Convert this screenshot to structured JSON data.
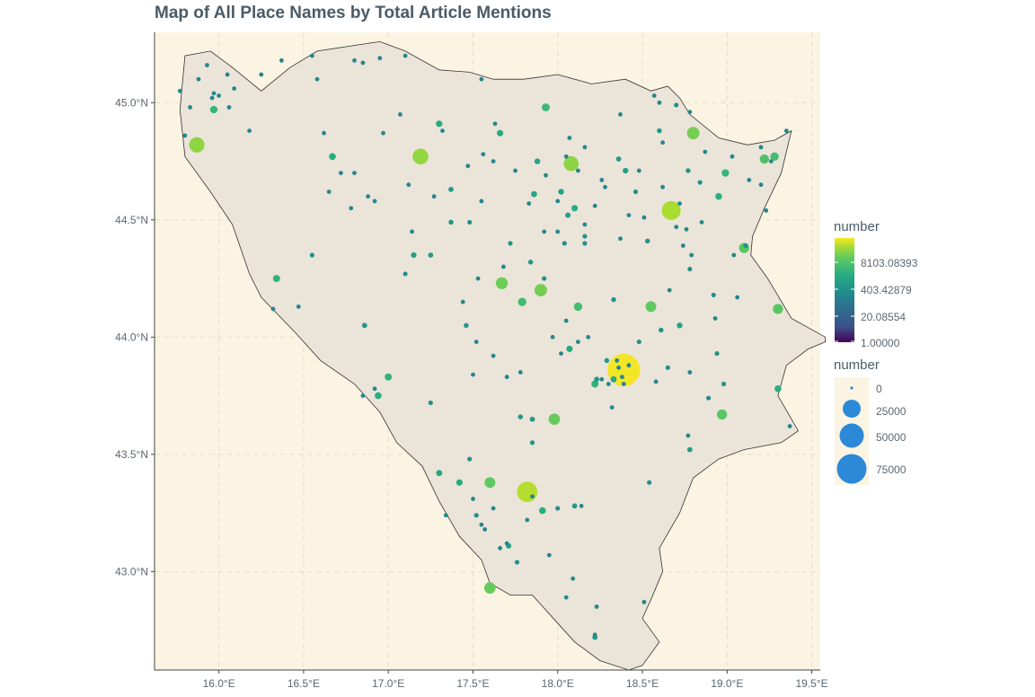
{
  "title": "Map of All Place Names by Total Article Mentions",
  "colors": {
    "panel_bg": "#fbf4e2",
    "country_fill": "#ebe4d8",
    "grid": "#e8dec7",
    "axis": "#444444",
    "size_legend_point": "#2c89d8"
  },
  "axes": {
    "x_ticks": [
      {
        "value": 16.0,
        "label": "16.0°E"
      },
      {
        "value": 16.5,
        "label": "16.5°E"
      },
      {
        "value": 17.0,
        "label": "17.0°E"
      },
      {
        "value": 17.5,
        "label": "17.5°E"
      },
      {
        "value": 18.0,
        "label": "18.0°E"
      },
      {
        "value": 18.5,
        "label": "18.5°E"
      },
      {
        "value": 19.0,
        "label": "19.0°E"
      },
      {
        "value": 19.5,
        "label": "19.5°E"
      }
    ],
    "y_ticks": [
      {
        "value": 43.0,
        "label": "43.0°N"
      },
      {
        "value": 43.5,
        "label": "43.5°N"
      },
      {
        "value": 44.0,
        "label": "44.0°N"
      },
      {
        "value": 44.5,
        "label": "44.5°N"
      },
      {
        "value": 45.0,
        "label": "45.0°N"
      }
    ]
  },
  "legend": {
    "color_title": "number",
    "color_labels": [
      "8103.08393",
      "403.42879",
      "20.08554",
      "1.00000"
    ],
    "size_title": "number",
    "size_labels": [
      "0",
      "25000",
      "50000",
      "75000"
    ]
  },
  "chart_data": {
    "type": "scatter",
    "title": "Map of All Place Names by Total Article Mentions",
    "x_range": [
      15.62,
      19.55
    ],
    "y_range": [
      42.58,
      45.3
    ],
    "color_scale": "viridis (log)",
    "color_range": [
      1,
      100000
    ],
    "size_range": [
      0,
      90000
    ],
    "outline": [
      [
        15.8,
        44.77
      ],
      [
        15.77,
        44.97
      ],
      [
        15.8,
        45.2
      ],
      [
        15.95,
        45.22
      ],
      [
        16.08,
        45.15
      ],
      [
        16.25,
        45.05
      ],
      [
        16.42,
        45.15
      ],
      [
        16.58,
        45.22
      ],
      [
        16.85,
        45.25
      ],
      [
        16.95,
        45.26
      ],
      [
        17.1,
        45.22
      ],
      [
        17.3,
        45.14
      ],
      [
        17.48,
        45.13
      ],
      [
        17.62,
        45.1
      ],
      [
        17.8,
        45.1
      ],
      [
        18.0,
        45.12
      ],
      [
        18.2,
        45.08
      ],
      [
        18.4,
        45.1
      ],
      [
        18.55,
        45.05
      ],
      [
        18.65,
        45.07
      ],
      [
        18.72,
        45.02
      ],
      [
        18.78,
        44.95
      ],
      [
        18.95,
        44.85
      ],
      [
        19.12,
        44.82
      ],
      [
        19.28,
        44.84
      ],
      [
        19.38,
        44.88
      ],
      [
        19.32,
        44.7
      ],
      [
        19.22,
        44.55
      ],
      [
        19.15,
        44.43
      ],
      [
        19.14,
        44.35
      ],
      [
        19.24,
        44.25
      ],
      [
        19.38,
        44.08
      ],
      [
        19.58,
        44.0
      ],
      [
        19.58,
        43.98
      ],
      [
        19.48,
        43.95
      ],
      [
        19.35,
        43.88
      ],
      [
        19.3,
        43.75
      ],
      [
        19.42,
        43.6
      ],
      [
        19.32,
        43.55
      ],
      [
        19.1,
        43.52
      ],
      [
        18.95,
        43.48
      ],
      [
        18.8,
        43.4
      ],
      [
        18.72,
        43.25
      ],
      [
        18.6,
        43.1
      ],
      [
        18.62,
        43.0
      ],
      [
        18.55,
        42.88
      ],
      [
        18.5,
        42.8
      ],
      [
        18.6,
        42.7
      ],
      [
        18.5,
        42.6
      ],
      [
        18.42,
        42.58
      ],
      [
        18.25,
        42.62
      ],
      [
        18.1,
        42.7
      ],
      [
        18.0,
        42.78
      ],
      [
        17.85,
        42.9
      ],
      [
        17.72,
        42.9
      ],
      [
        17.6,
        42.95
      ],
      [
        17.55,
        43.05
      ],
      [
        17.42,
        43.15
      ],
      [
        17.3,
        43.3
      ],
      [
        17.2,
        43.45
      ],
      [
        17.05,
        43.55
      ],
      [
        16.95,
        43.68
      ],
      [
        16.8,
        43.8
      ],
      [
        16.6,
        43.9
      ],
      [
        16.45,
        44.02
      ],
      [
        16.25,
        44.17
      ],
      [
        16.18,
        44.27
      ],
      [
        16.08,
        44.48
      ],
      [
        15.95,
        44.62
      ],
      [
        15.8,
        44.77
      ]
    ],
    "points": [
      [
        18.39,
        43.86,
        85000
      ],
      [
        17.82,
        43.34,
        30000
      ],
      [
        18.67,
        44.54,
        25000
      ],
      [
        18.08,
        44.74,
        14000
      ],
      [
        17.19,
        44.77,
        16000
      ],
      [
        15.87,
        44.82,
        15000
      ],
      [
        17.9,
        44.2,
        9000
      ],
      [
        17.67,
        44.23,
        8000
      ],
      [
        18.8,
        44.87,
        9000
      ],
      [
        17.98,
        43.65,
        7000
      ],
      [
        17.6,
        43.38,
        6000
      ],
      [
        17.6,
        42.93,
        7000
      ],
      [
        18.55,
        44.13,
        6000
      ],
      [
        18.97,
        43.67,
        5000
      ],
      [
        19.1,
        44.38,
        5000
      ],
      [
        19.3,
        44.12,
        5000
      ],
      [
        19.22,
        44.76,
        4000
      ],
      [
        19.28,
        44.77,
        3000
      ],
      [
        18.12,
        44.13,
        3000
      ],
      [
        17.79,
        44.15,
        3000
      ],
      [
        17.93,
        44.98,
        2500
      ],
      [
        18.99,
        44.7,
        2000
      ],
      [
        15.97,
        44.97,
        2000
      ],
      [
        17.0,
        43.83,
        1800
      ],
      [
        16.34,
        44.25,
        1800
      ],
      [
        16.67,
        44.77,
        1500
      ],
      [
        18.22,
        43.8,
        1800
      ],
      [
        18.95,
        44.6,
        1500
      ],
      [
        16.94,
        43.75,
        1500
      ],
      [
        17.3,
        44.91,
        1200
      ],
      [
        18.1,
        44.55,
        1200
      ],
      [
        17.91,
        43.26,
        1500
      ],
      [
        18.07,
        43.95,
        1200
      ],
      [
        19.3,
        43.78,
        1500
      ],
      [
        18.33,
        43.82,
        1000
      ],
      [
        17.42,
        43.38,
        1200
      ],
      [
        17.3,
        43.42,
        1000
      ],
      [
        17.66,
        44.87,
        1200
      ],
      [
        18.72,
        44.05,
        800
      ],
      [
        18.02,
        44.62,
        800
      ],
      [
        17.86,
        44.61,
        1000
      ],
      [
        17.88,
        44.75,
        800
      ],
      [
        18.4,
        44.71,
        700
      ],
      [
        17.15,
        44.35,
        700
      ],
      [
        18.06,
        44.52,
        600
      ],
      [
        17.85,
        43.65,
        500
      ],
      [
        18.23,
        43.82,
        500
      ],
      [
        17.25,
        44.35,
        500
      ],
      [
        17.37,
        44.49,
        400
      ],
      [
        18.6,
        44.88,
        400
      ],
      [
        18.77,
        44.71,
        400
      ],
      [
        19.11,
        44.39,
        400
      ],
      [
        18.36,
        44.76,
        500
      ],
      [
        16.86,
        44.05,
        500
      ],
      [
        18.78,
        43.52,
        500
      ],
      [
        17.84,
        44.32,
        400
      ],
      [
        17.37,
        44.63,
        500
      ],
      [
        17.46,
        44.05,
        400
      ],
      [
        18.53,
        44.41,
        400
      ],
      [
        18.33,
        44.16,
        400
      ],
      [
        18.29,
        43.9,
        400
      ],
      [
        18.1,
        43.28,
        500
      ],
      [
        17.71,
        43.11,
        600
      ],
      [
        17.78,
        43.66,
        400
      ],
      [
        18.61,
        44.03,
        400
      ],
      [
        18.7,
        44.99,
        300
      ],
      [
        17.92,
        44.25,
        300
      ],
      [
        17.25,
        43.72,
        300
      ],
      [
        17.48,
        44.49,
        300
      ],
      [
        16.55,
        44.35,
        300
      ],
      [
        17.1,
        44.27,
        300
      ],
      [
        17.52,
        43.24,
        300
      ],
      [
        17.48,
        43.48,
        300
      ],
      [
        18.0,
        43.27,
        300
      ],
      [
        17.76,
        43.04,
        300
      ],
      [
        18.16,
        44.43,
        300
      ],
      [
        18.46,
        44.62,
        300
      ],
      [
        18.92,
        44.18,
        300
      ],
      [
        18.98,
        43.8,
        300
      ],
      [
        19.06,
        44.17,
        200
      ],
      [
        18.51,
        44.51,
        200
      ],
      [
        18.14,
        43.28,
        200
      ],
      [
        17.85,
        43.55,
        300
      ],
      [
        18.37,
        44.42,
        200
      ],
      [
        18.48,
        44.71,
        200
      ],
      [
        18.66,
        44.2,
        200
      ],
      [
        18.54,
        43.38,
        300
      ],
      [
        18.77,
        43.58,
        200
      ],
      [
        18.51,
        42.87,
        200
      ],
      [
        18.78,
        44.29,
        300
      ],
      [
        18.93,
        44.08,
        200
      ],
      [
        19.04,
        44.35,
        200
      ],
      [
        18.58,
        43.81,
        200
      ],
      [
        18.76,
        44.46,
        200
      ],
      [
        18.84,
        44.66,
        300
      ],
      [
        18.0,
        44.58,
        200
      ],
      [
        17.53,
        44.25,
        200
      ],
      [
        17.14,
        44.45,
        200
      ],
      [
        16.47,
        44.13,
        200
      ],
      [
        16.32,
        44.12,
        200
      ],
      [
        18.26,
        44.67,
        200
      ],
      [
        18.12,
        44.71,
        200
      ],
      [
        18.04,
        44.4,
        300
      ],
      [
        18.16,
        44.4,
        300
      ],
      [
        17.72,
        44.4,
        300
      ],
      [
        17.78,
        43.85,
        200
      ],
      [
        17.5,
        43.84,
        200
      ],
      [
        17.34,
        43.24,
        200
      ],
      [
        17.55,
        43.2,
        200
      ],
      [
        17.82,
        43.22,
        200
      ],
      [
        17.5,
        43.31,
        200
      ],
      [
        17.7,
        43.12,
        200
      ],
      [
        17.95,
        43.07,
        200
      ],
      [
        18.09,
        42.97,
        200
      ],
      [
        18.23,
        42.85,
        200
      ],
      [
        18.22,
        42.72,
        600
      ],
      [
        18.32,
        43.7,
        200
      ],
      [
        18.26,
        43.82,
        200
      ],
      [
        17.44,
        44.15,
        200
      ],
      [
        18.02,
        43.93,
        200
      ],
      [
        18.48,
        43.98,
        300
      ],
      [
        18.65,
        43.87,
        300
      ],
      [
        18.78,
        43.85,
        200
      ],
      [
        18.89,
        43.74,
        300
      ],
      [
        18.94,
        43.93,
        300
      ],
      [
        16.72,
        44.7,
        200
      ],
      [
        16.62,
        44.87,
        200
      ],
      [
        16.8,
        44.7,
        200
      ],
      [
        16.92,
        44.58,
        200
      ],
      [
        16.97,
        44.87,
        200
      ],
      [
        17.07,
        44.95,
        200
      ],
      [
        17.47,
        44.73,
        200
      ],
      [
        17.62,
        44.75,
        200
      ],
      [
        17.32,
        44.88,
        200
      ],
      [
        17.55,
        45.1,
        200
      ],
      [
        17.1,
        45.2,
        200
      ],
      [
        16.8,
        45.18,
        200
      ],
      [
        16.55,
        45.2,
        200
      ],
      [
        16.37,
        45.18,
        200
      ],
      [
        16.05,
        45.12,
        200
      ],
      [
        15.93,
        45.16,
        200
      ],
      [
        15.88,
        45.1,
        200
      ],
      [
        15.97,
        45.04,
        200
      ],
      [
        16.0,
        45.03,
        200
      ],
      [
        16.18,
        44.88,
        200
      ],
      [
        15.96,
        45.02,
        200
      ],
      [
        15.83,
        44.98,
        200
      ],
      [
        15.8,
        44.86,
        200
      ],
      [
        15.77,
        45.05,
        200
      ],
      [
        16.25,
        45.12,
        200
      ],
      [
        16.58,
        45.1,
        200
      ],
      [
        16.06,
        44.98,
        200
      ],
      [
        16.09,
        45.06,
        200
      ],
      [
        16.85,
        45.17,
        200
      ],
      [
        16.95,
        45.19,
        200
      ],
      [
        17.63,
        44.91,
        200
      ],
      [
        18.16,
        44.81,
        200
      ],
      [
        18.37,
        44.95,
        200
      ],
      [
        18.07,
        44.85,
        200
      ],
      [
        18.57,
        45.03,
        200
      ],
      [
        18.6,
        45.0,
        200
      ],
      [
        18.78,
        44.96,
        200
      ],
      [
        18.62,
        44.83,
        200
      ],
      [
        18.87,
        44.79,
        200
      ],
      [
        19.03,
        44.77,
        200
      ],
      [
        19.2,
        44.81,
        200
      ],
      [
        19.26,
        44.75,
        200
      ],
      [
        19.13,
        44.67,
        200
      ],
      [
        19.2,
        44.65,
        200
      ],
      [
        19.23,
        44.54,
        200
      ],
      [
        19.35,
        44.88,
        200
      ],
      [
        19.37,
        43.62,
        200
      ],
      [
        18.22,
        42.73,
        200
      ],
      [
        18.05,
        42.89,
        200
      ],
      [
        18.42,
        44.52,
        200
      ],
      [
        18.62,
        44.64,
        200
      ],
      [
        18.72,
        44.57,
        200
      ],
      [
        18.74,
        44.39,
        200
      ],
      [
        18.79,
        44.35,
        200
      ],
      [
        18.85,
        44.49,
        200
      ],
      [
        18.7,
        44.47,
        200
      ],
      [
        17.93,
        44.69,
        200
      ],
      [
        18.0,
        44.45,
        200
      ],
      [
        18.16,
        44.48,
        200
      ],
      [
        18.22,
        44.56,
        200
      ],
      [
        18.28,
        44.64,
        200
      ],
      [
        18.05,
        44.77,
        200
      ],
      [
        17.75,
        44.71,
        200
      ],
      [
        17.83,
        44.57,
        200
      ],
      [
        17.56,
        44.78,
        200
      ],
      [
        17.27,
        44.6,
        200
      ],
      [
        17.12,
        44.65,
        200
      ],
      [
        16.78,
        44.55,
        200
      ],
      [
        16.88,
        44.6,
        200
      ],
      [
        16.65,
        44.62,
        200
      ],
      [
        17.55,
        44.58,
        200
      ],
      [
        17.68,
        44.3,
        200
      ],
      [
        17.92,
        44.45,
        200
      ],
      [
        18.05,
        44.07,
        200
      ],
      [
        18.12,
        43.98,
        200
      ],
      [
        18.18,
        44.0,
        200
      ],
      [
        17.97,
        44.0,
        200
      ],
      [
        18.3,
        43.8,
        200
      ],
      [
        17.62,
        43.92,
        200
      ],
      [
        17.7,
        43.83,
        200
      ],
      [
        17.52,
        43.98,
        200
      ],
      [
        16.85,
        43.75,
        200
      ],
      [
        16.92,
        43.78,
        200
      ],
      [
        17.62,
        43.27,
        200
      ],
      [
        17.66,
        43.1,
        200
      ],
      [
        17.57,
        43.18,
        200
      ],
      [
        17.85,
        43.32,
        200
      ],
      [
        18.38,
        43.83,
        200
      ],
      [
        18.39,
        43.8,
        200
      ],
      [
        18.36,
        43.87,
        200
      ],
      [
        18.42,
        43.88,
        200
      ],
      [
        18.35,
        43.9,
        200
      ]
    ]
  }
}
